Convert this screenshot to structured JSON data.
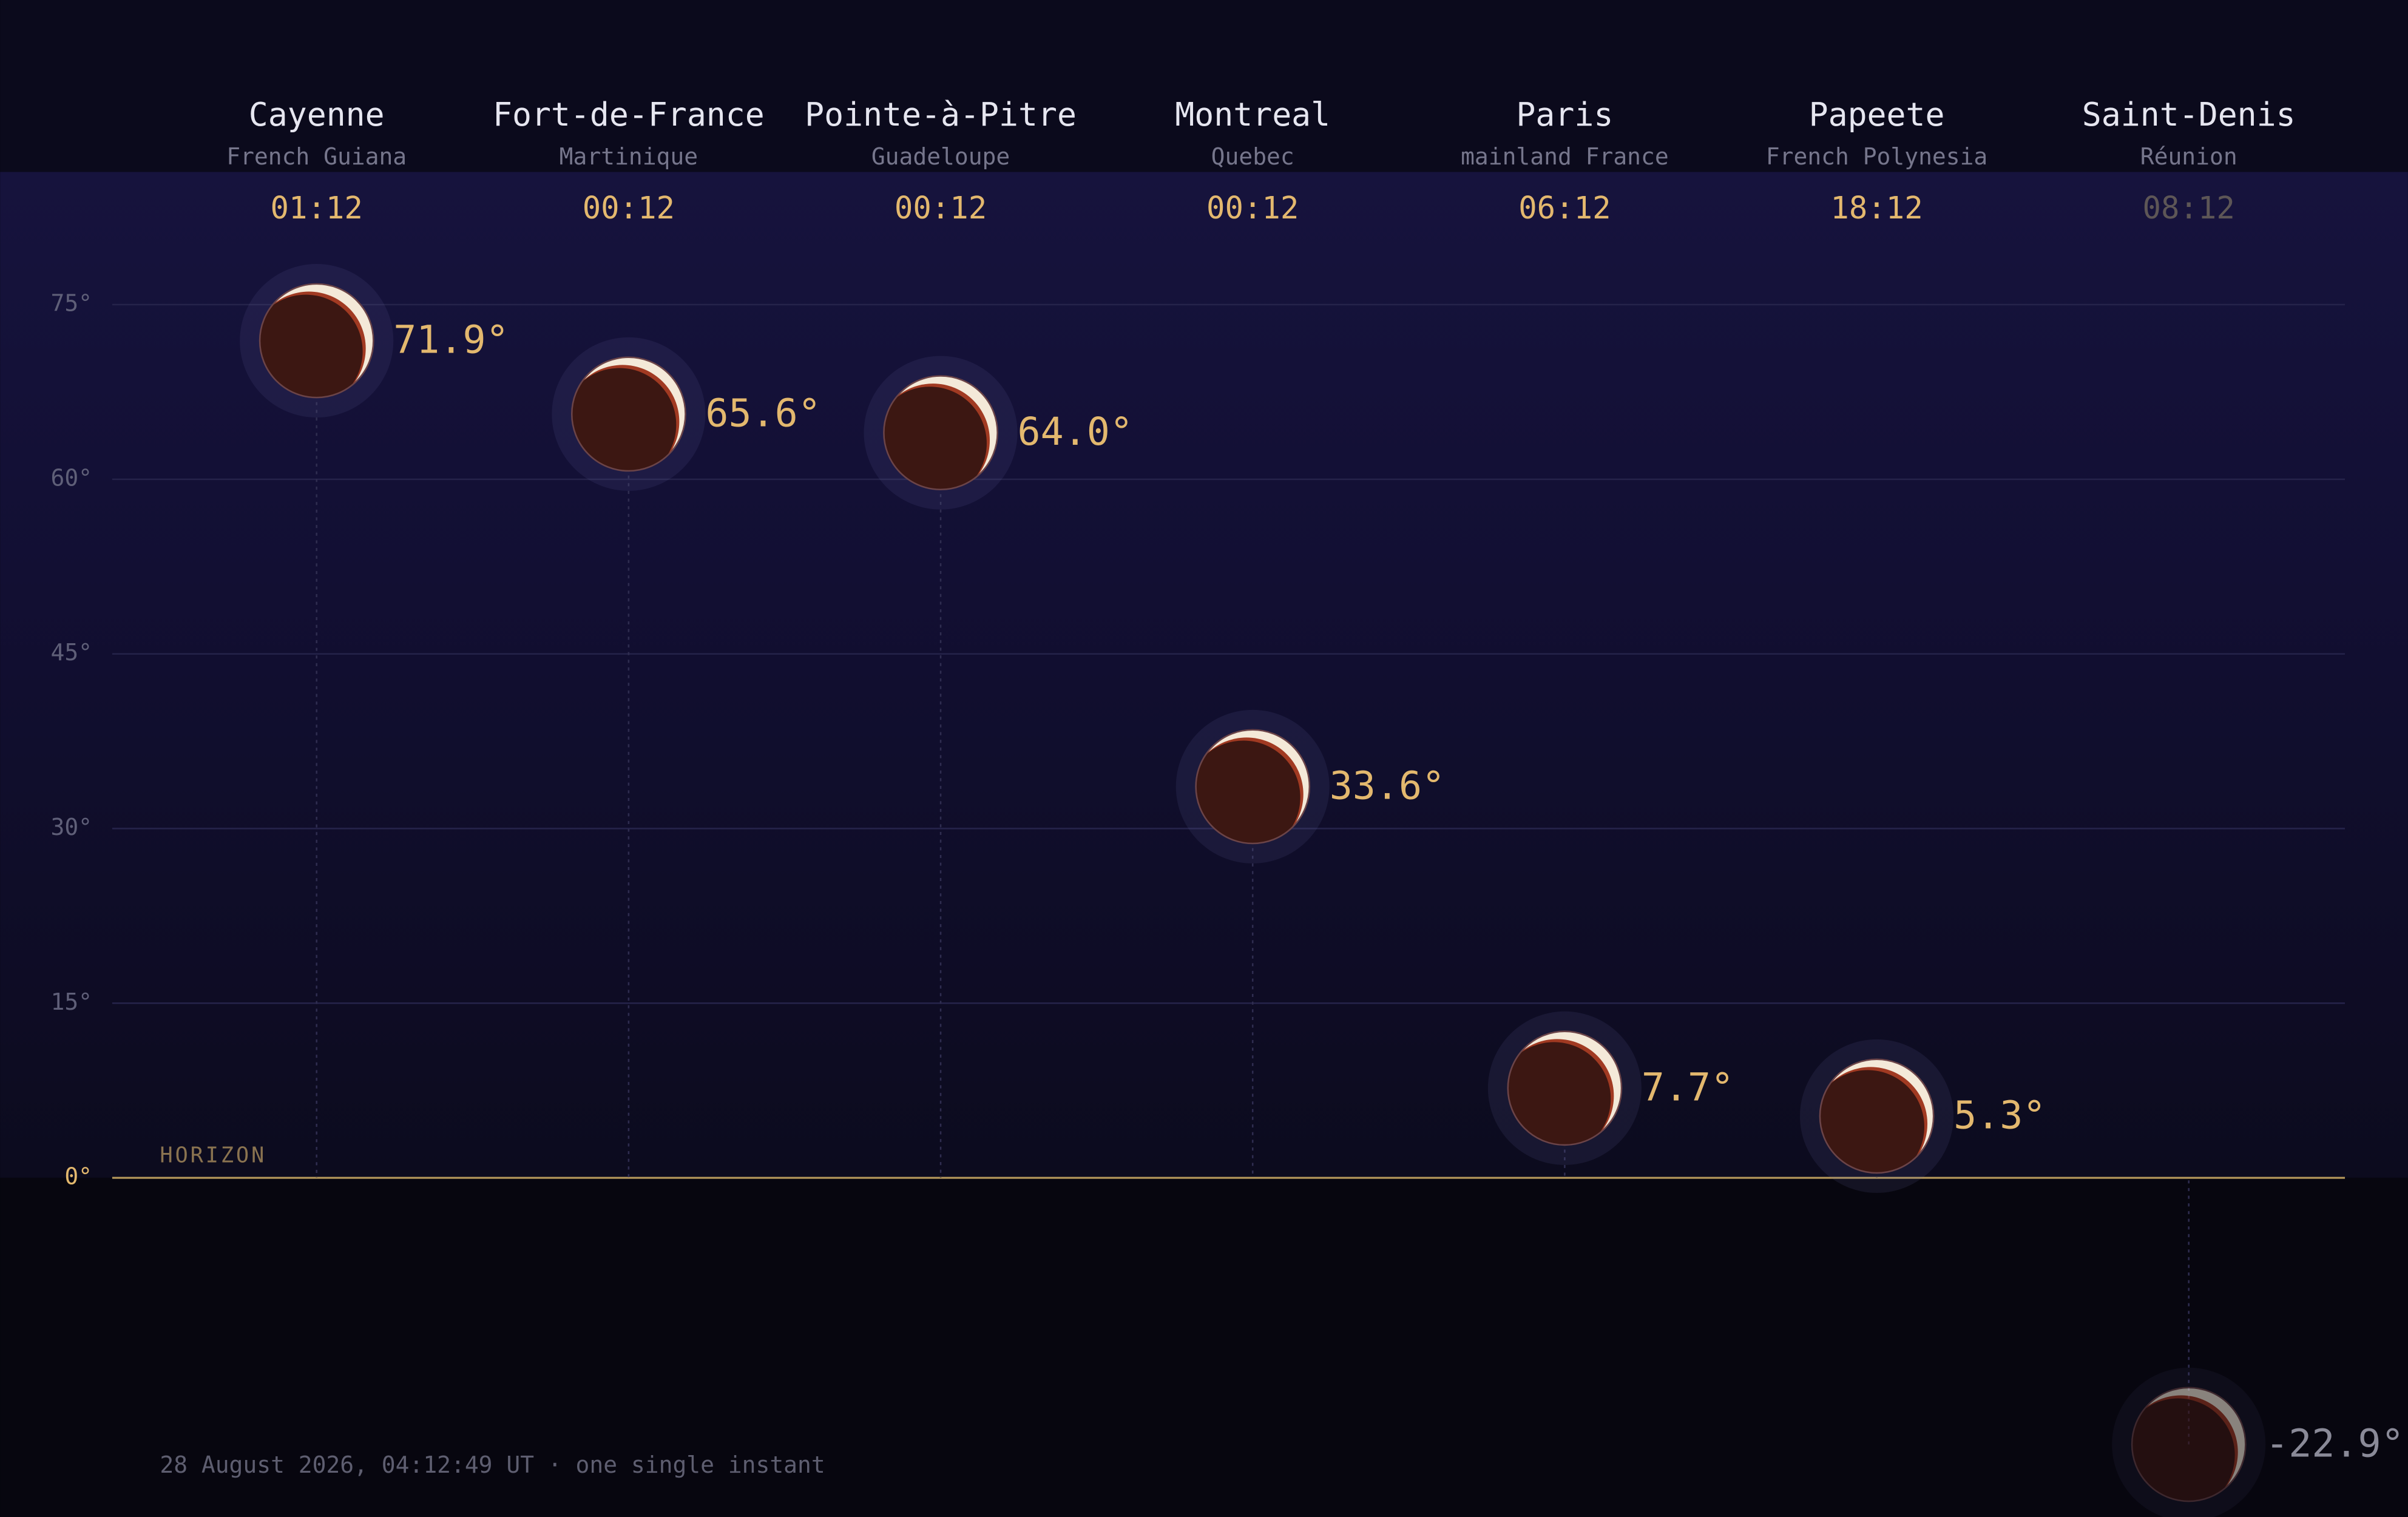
{
  "chart_data": {
    "type": "altitude",
    "categories": [
      "Cayenne",
      "Fort-de-France",
      "Pointe-à-Pitre",
      "Montreal",
      "Paris",
      "Papeete",
      "Saint-Denis"
    ],
    "regions": [
      "French Guiana",
      "Martinique",
      "Guadeloupe",
      "Quebec",
      "mainland France",
      "French Polynesia",
      "Réunion"
    ],
    "times": [
      "01:12",
      "00:12",
      "00:12",
      "00:12",
      "06:12",
      "18:12",
      "08:12"
    ],
    "values": [
      71.9,
      65.6,
      64.0,
      33.6,
      7.7,
      5.3,
      -22.9
    ],
    "value_labels": [
      "71.9°",
      "65.6°",
      "64.0°",
      "33.6°",
      "7.7°",
      "5.3°",
      "-22.9°"
    ],
    "ylim": [
      -29,
      86
    ],
    "yticks": [
      {
        "value": 0,
        "label": "0°"
      },
      {
        "value": 15,
        "label": "15°"
      },
      {
        "value": 30,
        "label": "30°"
      },
      {
        "value": 45,
        "label": "45°"
      },
      {
        "value": 60,
        "label": "60°"
      },
      {
        "value": 75,
        "label": "75°"
      }
    ],
    "horizon_label": "HORIZON",
    "footnote": "28 August 2026, 04:12:49 UT · one single instant",
    "color": "#e3b86e",
    "grid": true
  }
}
